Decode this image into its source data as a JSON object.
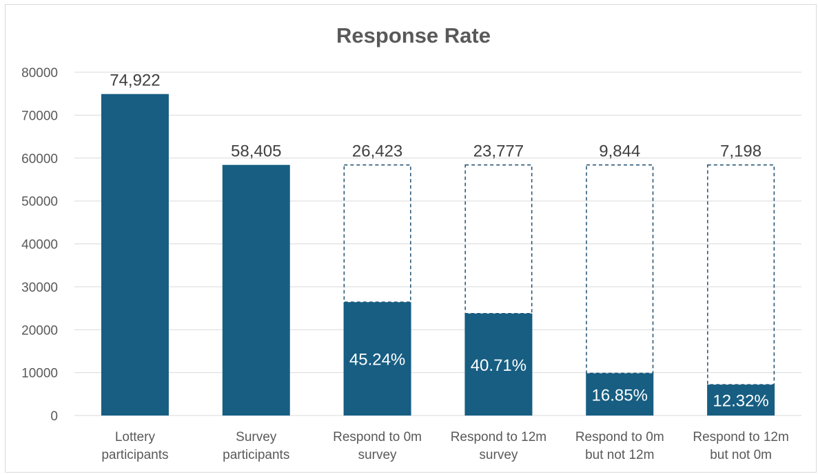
{
  "chart_data": {
    "type": "bar",
    "title": "Response Rate",
    "categories": [
      [
        "Lottery",
        "participants"
      ],
      [
        "Survey",
        "participants"
      ],
      [
        "Respond to 0m",
        "survey"
      ],
      [
        "Respond to 12m",
        "survey"
      ],
      [
        "Respond to 0m",
        "but not 12m"
      ],
      [
        "Respond to 12m",
        "but not 0m"
      ]
    ],
    "values": [
      74922,
      58405,
      26423,
      23777,
      9844,
      7198
    ],
    "value_labels": [
      "74,922",
      "58,405",
      "26,423",
      "23,777",
      "9,844",
      "7,198"
    ],
    "reference_total": 58405,
    "percent_labels": [
      "",
      "",
      "45.24%",
      "40.71%",
      "16.85%",
      "12.32%"
    ],
    "dashed_outline_for": [
      false,
      false,
      true,
      true,
      true,
      true
    ],
    "ylim": [
      0,
      80000
    ],
    "yticks": [
      0,
      10000,
      20000,
      30000,
      40000,
      50000,
      60000,
      70000,
      80000
    ],
    "xlabel": "",
    "ylabel": "",
    "grid": true,
    "colors": {
      "bar": "#175e82",
      "grid": "#d9d9d9",
      "outline": "#1f4e6e"
    }
  }
}
